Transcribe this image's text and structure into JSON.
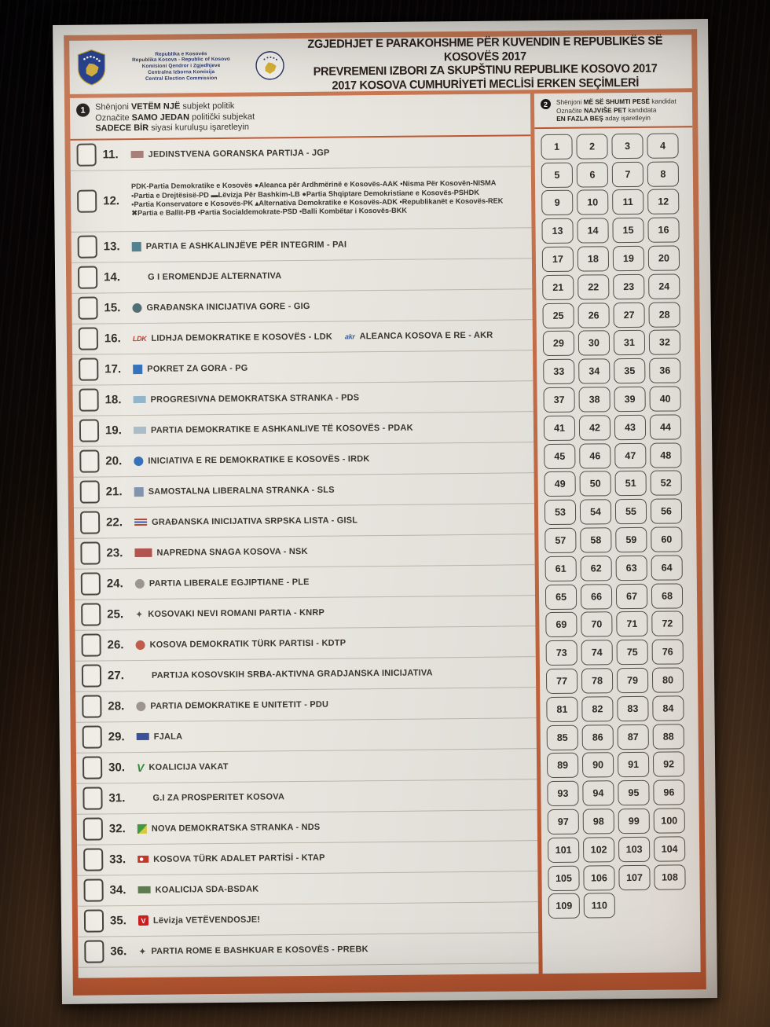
{
  "colors": {
    "frame_accent": "#c05a33",
    "paper": "#eae7e1",
    "title_text": "#2b201c",
    "commission_text": "#2a3560",
    "emblem_blue": "#1f3a8f",
    "emblem_gold": "#d9b23a"
  },
  "header": {
    "commission_lines": [
      "Republika e Kosovës",
      "Republika Kosova - Republic of Kosovo",
      "Komisioni Qendror i Zgjedhjeve",
      "Centralna Izborna Komisija",
      "Central Election Commission"
    ],
    "title_lines": [
      "ZGJEDHJET E PARAKOHSHME PËR KUVENDIN E REPUBLIKËS SË KOSOVËS 2017",
      "PREVREMENI IZBORI ZA SKUPŠTINU REPUBLIKE KOSOVO 2017",
      "2017 KOSOVA CUMHURİYETİ MECLİSİ ERKEN SEÇİMLERİ"
    ]
  },
  "instructions": {
    "left": {
      "number": "1",
      "lines": [
        {
          "pre": "Shënjoni ",
          "bold": "VETËM NJË",
          "post": " subjekt politik"
        },
        {
          "pre": "Označite ",
          "bold": "SAMO JEDAN",
          "post": " politički subjekat"
        },
        {
          "pre": "",
          "bold": "SADECE BİR",
          "post": " siyasi kuruluşu işaretleyin"
        }
      ]
    },
    "right": {
      "number": "2",
      "lines": [
        {
          "pre": "Shënjoni ",
          "bold": "MË SË SHUMTI PESË",
          "post": " kandidat"
        },
        {
          "pre": "Označite ",
          "bold": "NAJVIŠE PET",
          "post": " kandidata"
        },
        {
          "pre": "",
          "bold": "EN FAZLA BEŞ",
          "post": " aday işaretleyin"
        }
      ]
    }
  },
  "parties": [
    {
      "num": "11.",
      "name": "JEDINSTVENA GORANSKA PARTIJA - JGP",
      "logo": {
        "shape": "rect",
        "color": "#a37a74"
      }
    },
    {
      "num": "12.",
      "coalition_lines": [
        "PDK-Partia Demokratike e Kosovës ●Aleanca për Ardhmërinë e Kosovës-AAK ▪Nisma Për Kosovën-NISMA",
        "▪Partia e Drejtësisë-PD ▬Lëvizja Për Bashkim-LB ●Partia Shqiptare Demokristiane e Kosovës-PSHDK",
        "▪Partia Konservatore e Kosovës-PK ▴Alternativa Demokratike e Kosovës-ADK ▪Republikanët e Kosovës-REK",
        "✖Partia e Ballit-PB ▪Partia Socialdemokrate-PSD ▪Balli Kombëtar i Kosovës-BKK"
      ]
    },
    {
      "num": "13.",
      "name": "PARTIA E ASHKALINJËVE PËR INTEGRIM - PAI",
      "logo": {
        "shape": "square",
        "color": "#4f7d8a"
      }
    },
    {
      "num": "14.",
      "name": "G I EROMENDJE ALTERNATIVA",
      "logo": {
        "shape": "none"
      }
    },
    {
      "num": "15.",
      "name": "GRAĐANSKA INICIJATIVA GORE - GIG",
      "logo": {
        "shape": "circle",
        "color": "#4a6a72"
      }
    },
    {
      "num": "16.",
      "name": "LIDHJA DEMOKRATIKE E KOSOVËS - LDK",
      "logo": {
        "shape": "text",
        "text": "LDK",
        "color": "#c0392b"
      },
      "second": {
        "name": "ALEANCA KOSOVA E RE - AKR",
        "logo": {
          "shape": "text",
          "text": "akr",
          "color": "#3a5fa0"
        }
      }
    },
    {
      "num": "17.",
      "name": "POKRET ZA GORA - PG",
      "logo": {
        "shape": "square",
        "color": "#2f6fba"
      }
    },
    {
      "num": "18.",
      "name": "PROGRESIVNA DEMOKRATSKA STRANKA - PDS",
      "logo": {
        "shape": "rect",
        "color": "#8fb3c9"
      }
    },
    {
      "num": "19.",
      "name": "PARTIA DEMOKRATIKE E ASHKANLIVE TË KOSOVËS - PDAK",
      "logo": {
        "shape": "rect",
        "color": "#a8bac6"
      }
    },
    {
      "num": "20.",
      "name": "INICIATIVA E RE DEMOKRATIKE E KOSOVËS - IRDK",
      "logo": {
        "shape": "circle",
        "color": "#2f6fba"
      }
    },
    {
      "num": "21.",
      "name": "SAMOSTALNA LIBERALNA STRANKA - SLS",
      "logo": {
        "shape": "square",
        "color": "#7d93ab"
      }
    },
    {
      "num": "22.",
      "name": "GRAĐANSKA INICIJATIVA SRPSKA LISTA - GISL",
      "logo": {
        "shape": "stripes"
      }
    },
    {
      "num": "23.",
      "name": "NAPREDNA SNAGA KOSOVA - NSK",
      "logo": {
        "shape": "rect",
        "color": "#b0524e",
        "wide": true
      }
    },
    {
      "num": "24.",
      "name": "PARTIA LIBERALE EGJIPTIANE - PLE",
      "logo": {
        "shape": "circle",
        "color": "#9a948c"
      }
    },
    {
      "num": "25.",
      "name": "KOSOVAKI NEVI ROMANI PARTIA - KNRP",
      "logo": {
        "shape": "star",
        "color": "#55514a"
      }
    },
    {
      "num": "26.",
      "name": "KOSOVA DEMOKRATIK TÜRK PARTISI - KDTP",
      "logo": {
        "shape": "circle",
        "color": "#c05a4a"
      }
    },
    {
      "num": "27.",
      "name": "PARTIJA KOSOVSKIH SRBA-AKTIVNA GRADJANSKA INICIJATIVA",
      "logo": {
        "shape": "none"
      }
    },
    {
      "num": "28.",
      "name": "PARTIA DEMOKRATIKE E UNITETIT - PDU",
      "logo": {
        "shape": "circle",
        "color": "#9a948c"
      }
    },
    {
      "num": "29.",
      "name": "FJALA",
      "logo": {
        "shape": "rect",
        "color": "#3a4f9a"
      }
    },
    {
      "num": "30.",
      "name": "KOALICIJA VAKAT",
      "logo": {
        "shape": "vtext",
        "color": "#2e8b3a"
      }
    },
    {
      "num": "31.",
      "name": "G.I ZA PROSPERITET KOSOVA",
      "logo": {
        "shape": "none"
      }
    },
    {
      "num": "32.",
      "name": "NOVA DEMOKRATSKA STRANKA - NDS",
      "logo": {
        "shape": "diag",
        "color": "#3f9a3f",
        "color2": "#d9c93f"
      }
    },
    {
      "num": "33.",
      "name": "KOSOVA TÜRK ADALET PARTİSİ - KTAP",
      "logo": {
        "shape": "flag",
        "color": "#c0392b"
      }
    },
    {
      "num": "34.",
      "name": "KOALICIJA SDA-BSDAK",
      "logo": {
        "shape": "rect",
        "color": "#5e7a52"
      }
    },
    {
      "num": "35.",
      "name": "Lëvizja VETËVENDOSJE!",
      "logo": {
        "shape": "vbox",
        "color": "#cc1f1f"
      }
    },
    {
      "num": "36.",
      "name": "PARTIA ROME E BASHKUAR E KOSOVËS - PREBK",
      "logo": {
        "shape": "star",
        "color": "#4a463f"
      }
    }
  ],
  "candidate_numbers": [
    1,
    2,
    3,
    4,
    5,
    6,
    7,
    8,
    9,
    10,
    11,
    12,
    13,
    14,
    15,
    16,
    17,
    18,
    19,
    20,
    21,
    22,
    23,
    24,
    25,
    26,
    27,
    28,
    29,
    30,
    31,
    32,
    33,
    34,
    35,
    36,
    37,
    38,
    39,
    40,
    41,
    42,
    43,
    44,
    45,
    46,
    47,
    48,
    49,
    50,
    51,
    52,
    53,
    54,
    55,
    56,
    57,
    58,
    59,
    60,
    61,
    62,
    63,
    64,
    65,
    66,
    67,
    68,
    69,
    70,
    71,
    72,
    73,
    74,
    75,
    76,
    77,
    78,
    79,
    80,
    81,
    82,
    83,
    84,
    85,
    86,
    87,
    88,
    89,
    90,
    91,
    92,
    93,
    94,
    95,
    96,
    97,
    98,
    99,
    100,
    101,
    102,
    103,
    104,
    105,
    106,
    107,
    108,
    109,
    110
  ]
}
